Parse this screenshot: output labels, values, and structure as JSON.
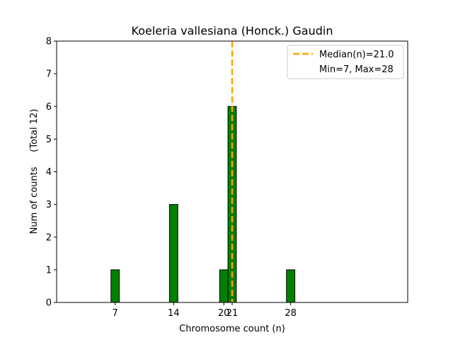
{
  "chart_data": {
    "type": "bar",
    "title": "Koeleria vallesiana (Honck.) Gaudin",
    "xlabel": "Chromosome count (n)",
    "ylabel": "Num of counts     (Total 12)",
    "x": [
      7,
      14,
      20,
      21,
      28
    ],
    "values": [
      1,
      3,
      1,
      6,
      1
    ],
    "xticks": [
      7,
      14,
      20,
      21,
      28
    ],
    "xtick_labels": [
      "7",
      "14",
      "20",
      "21",
      "28"
    ],
    "yticks": [
      0,
      1,
      2,
      3,
      4,
      5,
      6,
      7,
      8
    ],
    "xlim": [
      0,
      42
    ],
    "ylim": [
      0,
      8
    ],
    "bar_color": "#008000",
    "bar_edge_color": "#000000",
    "median": 21.0,
    "median_color": "#ffa500",
    "legend": {
      "placement": "top-right",
      "entries": [
        "Median(n)=21.0",
        "Min=7, Max=28"
      ]
    },
    "grid": false
  }
}
